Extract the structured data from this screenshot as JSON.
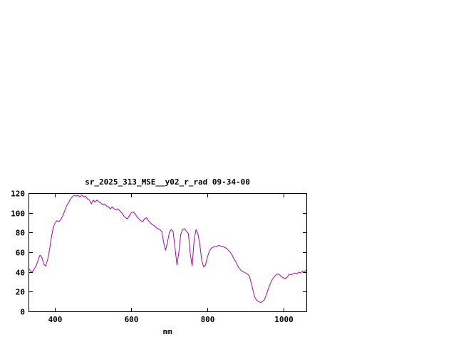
{
  "page": {
    "background": "#ffffff"
  },
  "chart": {
    "title": "sr_2025_313_MSE__y02_r_rad 09-34-00",
    "xlabel": "nm",
    "axis_color": "#000000",
    "text_color": "#000000"
  },
  "chart_data": {
    "type": "line",
    "title": "sr_2025_313_MSE__y02_r_rad 09-34-00",
    "xlabel": "nm",
    "ylabel": "",
    "xlim": [
      330,
      1060
    ],
    "ylim": [
      0,
      120
    ],
    "xticks": [
      400,
      600,
      800,
      1000
    ],
    "yticks": [
      0,
      20,
      40,
      60,
      80,
      100,
      120
    ],
    "grid": false,
    "legend_position": "none",
    "series": [
      {
        "name": "sr_2025_313_MSE__y02_r_rad",
        "color": "#b000b0",
        "x": [
          330,
          335,
          340,
          345,
          350,
          355,
          360,
          365,
          370,
          375,
          380,
          385,
          390,
          395,
          400,
          405,
          410,
          415,
          420,
          425,
          430,
          435,
          440,
          445,
          450,
          455,
          460,
          465,
          470,
          475,
          480,
          485,
          490,
          495,
          500,
          505,
          510,
          515,
          520,
          525,
          530,
          535,
          540,
          545,
          550,
          555,
          560,
          565,
          570,
          575,
          580,
          585,
          590,
          595,
          600,
          605,
          610,
          615,
          620,
          625,
          630,
          635,
          640,
          645,
          650,
          655,
          660,
          665,
          670,
          675,
          680,
          685,
          690,
          695,
          700,
          705,
          710,
          715,
          720,
          725,
          730,
          735,
          740,
          745,
          750,
          755,
          760,
          765,
          770,
          775,
          780,
          785,
          790,
          795,
          800,
          805,
          810,
          815,
          820,
          825,
          830,
          835,
          840,
          845,
          850,
          855,
          860,
          865,
          870,
          875,
          880,
          885,
          890,
          895,
          900,
          905,
          910,
          915,
          920,
          925,
          930,
          935,
          940,
          945,
          950,
          955,
          960,
          965,
          970,
          975,
          980,
          985,
          990,
          995,
          1000,
          1005,
          1010,
          1015,
          1020,
          1025,
          1030,
          1035,
          1040,
          1045,
          1050,
          1055,
          1060
        ],
        "y": [
          44,
          41,
          40,
          43,
          46,
          52,
          57,
          55,
          48,
          46,
          52,
          62,
          75,
          85,
          90,
          92,
          91,
          93,
          97,
          102,
          107,
          110,
          114,
          116,
          118,
          117,
          118,
          116,
          118,
          116,
          117,
          114,
          113,
          109,
          113,
          111,
          113,
          111,
          110,
          108,
          109,
          107,
          106,
          104,
          106,
          104,
          103,
          104,
          102,
          100,
          97,
          95,
          94,
          97,
          100,
          101,
          99,
          96,
          94,
          92,
          91,
          94,
          95,
          92,
          90,
          88,
          87,
          85,
          84,
          83,
          81,
          70,
          62,
          70,
          80,
          83,
          81,
          64,
          47,
          60,
          78,
          83,
          84,
          81,
          79,
          58,
          46,
          72,
          83,
          79,
          68,
          52,
          45,
          47,
          55,
          61,
          64,
          65,
          66,
          66,
          67,
          66,
          66,
          65,
          64,
          62,
          60,
          57,
          53,
          50,
          46,
          43,
          41,
          40,
          39,
          38,
          36,
          29,
          21,
          14,
          11,
          10,
          9,
          10,
          12,
          17,
          23,
          28,
          32,
          35,
          37,
          38,
          37,
          35,
          34,
          33,
          35,
          38,
          37,
          38,
          39,
          38,
          40,
          39,
          41,
          40,
          42
        ]
      }
    ]
  }
}
